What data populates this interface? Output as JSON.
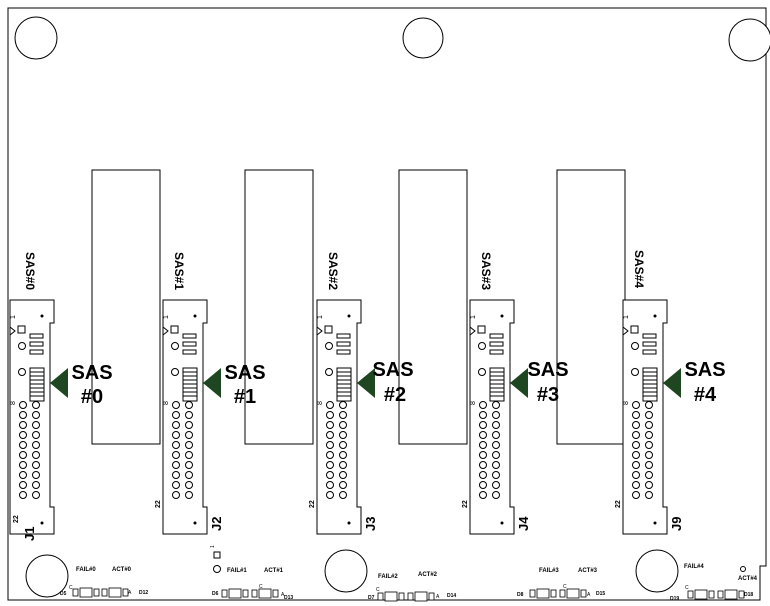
{
  "connectors": [
    {
      "ref": "J1",
      "side_label": "SAS#0",
      "callout_line1": "SAS",
      "callout_line2": "#0",
      "pin_first": "1",
      "pin_mid": "8",
      "pin_last": "22"
    },
    {
      "ref": "J2",
      "side_label": "SAS#1",
      "callout_line1": "SAS",
      "callout_line2": "#1",
      "pin_first": "1",
      "pin_mid": "8",
      "pin_last": "22"
    },
    {
      "ref": "J3",
      "side_label": "SAS#2",
      "callout_line1": "SAS",
      "callout_line2": "#2",
      "pin_first": "1",
      "pin_mid": "8",
      "pin_last": "22"
    },
    {
      "ref": "J4",
      "side_label": "SAS#3",
      "callout_line1": "SAS",
      "callout_line2": "#3",
      "pin_first": "1",
      "pin_mid": "8",
      "pin_last": "22"
    },
    {
      "ref": "J9",
      "side_label": "SAS#4",
      "callout_line1": "SAS",
      "callout_line2": "#4",
      "pin_first": "1",
      "pin_mid": "8",
      "pin_last": "22"
    }
  ],
  "led_groups": [
    {
      "fail": "FAIL#0",
      "act": "ACT#0",
      "d_left": "D5",
      "d_right": "D12",
      "c_label": "C",
      "a_label": "A"
    },
    {
      "fail": "FAIL#1",
      "act": "ACT#1",
      "d_left": "D6",
      "d_right": "D13",
      "c_label": "C",
      "a_label": "A"
    },
    {
      "fail": "FAIL#2",
      "act": "ACT#2",
      "d_left": "D7",
      "d_right": "D14",
      "c_label": "C",
      "a_label": "A"
    },
    {
      "fail": "FAIL#3",
      "act": "ACT#3",
      "d_left": "D8",
      "d_right": "D15",
      "c_label": "C",
      "a_label": "A"
    },
    {
      "fail": "FAIL#4",
      "act": "ACT#4",
      "d_left": "D19",
      "d_right": "D18",
      "c_label": "C",
      "a_label": "A"
    }
  ],
  "misc_pin_label": "1",
  "colors": {
    "arrow": "#1e4620",
    "line": "#000000",
    "background": "#ffffff"
  }
}
